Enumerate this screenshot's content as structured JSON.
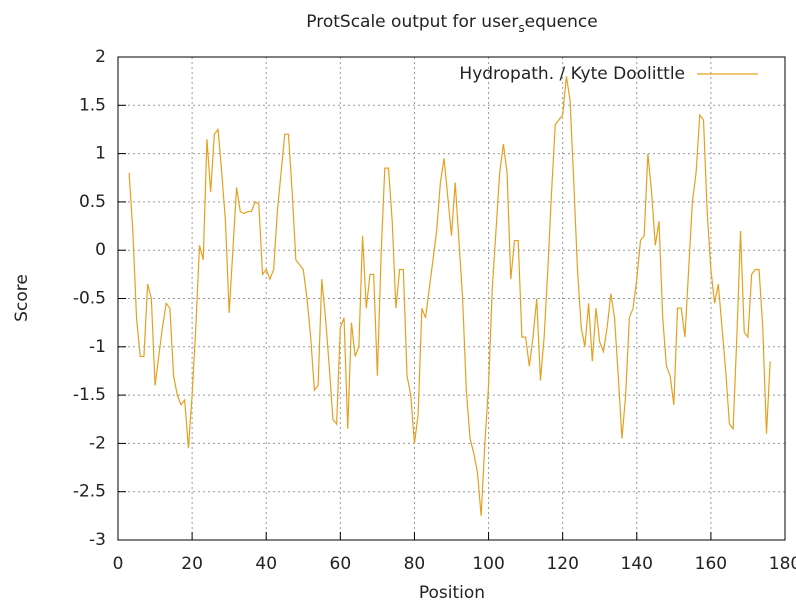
{
  "chart_data": {
    "type": "line",
    "title_parts": [
      "ProtScale output for user",
      "s",
      "equence"
    ],
    "xlabel": "Position",
    "ylabel": "Score",
    "xlim": [
      0,
      180
    ],
    "xticks": [
      0,
      20,
      40,
      60,
      80,
      100,
      120,
      140,
      160,
      180
    ],
    "ylim": [
      -3,
      2
    ],
    "yticks": [
      -3,
      -2.5,
      -2,
      -1.5,
      -1,
      -0.5,
      0,
      0.5,
      1,
      1.5,
      2
    ],
    "grid": true,
    "legend": "top-right",
    "x": [
      3,
      4,
      5,
      6,
      7,
      8,
      9,
      10,
      11,
      12,
      13,
      14,
      15,
      16,
      17,
      18,
      19,
      20,
      21,
      22,
      23,
      24,
      25,
      26,
      27,
      28,
      29,
      30,
      31,
      32,
      33,
      34,
      35,
      36,
      37,
      38,
      39,
      40,
      41,
      42,
      43,
      44,
      45,
      46,
      47,
      48,
      49,
      50,
      51,
      52,
      53,
      54,
      55,
      56,
      57,
      58,
      59,
      60,
      61,
      62,
      63,
      64,
      65,
      66,
      67,
      68,
      69,
      70,
      71,
      72,
      73,
      74,
      75,
      76,
      77,
      78,
      79,
      80,
      81,
      82,
      83,
      84,
      85,
      86,
      87,
      88,
      89,
      90,
      91,
      92,
      93,
      94,
      95,
      96,
      97,
      98,
      99,
      100,
      101,
      102,
      103,
      104,
      105,
      106,
      107,
      108,
      109,
      110,
      111,
      112,
      113,
      114,
      115,
      116,
      117,
      118,
      119,
      120,
      121,
      122,
      123,
      124,
      125,
      126,
      127,
      128,
      129,
      130,
      131,
      132,
      133,
      134,
      135,
      136,
      137,
      138,
      139,
      140,
      141,
      142,
      143,
      144,
      145,
      146,
      147,
      148,
      149,
      150,
      151,
      152,
      153,
      154,
      155,
      156,
      157,
      158,
      159,
      160,
      161,
      162,
      163,
      164,
      165,
      166,
      167,
      168,
      169,
      170,
      171,
      172,
      173,
      174,
      175,
      176
    ],
    "series": [
      {
        "name": "Hydropath. / Kyte  Doolittle",
        "color": "#e6a020",
        "values": [
          0.8,
          0.2,
          -0.7,
          -1.1,
          -1.1,
          -0.35,
          -0.5,
          -1.4,
          -1.1,
          -0.8,
          -0.55,
          -0.6,
          -1.3,
          -1.5,
          -1.6,
          -1.55,
          -2.05,
          -1.5,
          -0.8,
          0.05,
          -0.1,
          1.15,
          0.6,
          1.2,
          1.25,
          0.8,
          0.3,
          -0.65,
          0.0,
          0.65,
          0.4,
          0.38,
          0.4,
          0.4,
          0.5,
          0.48,
          -0.25,
          -0.2,
          -0.3,
          -0.2,
          0.4,
          0.8,
          1.2,
          1.2,
          0.6,
          -0.1,
          -0.15,
          -0.2,
          -0.5,
          -0.9,
          -1.45,
          -1.4,
          -0.3,
          -0.7,
          -1.2,
          -1.75,
          -1.8,
          -0.8,
          -0.7,
          -1.85,
          -0.75,
          -1.1,
          -1.0,
          0.15,
          -0.6,
          -0.25,
          -0.25,
          -1.3,
          -0.05,
          0.85,
          0.85,
          0.3,
          -0.6,
          -0.2,
          -0.2,
          -1.3,
          -1.5,
          -2.0,
          -1.7,
          -0.6,
          -0.7,
          -0.4,
          -0.1,
          0.2,
          0.7,
          0.95,
          0.55,
          0.15,
          0.7,
          0.1,
          -0.5,
          -1.45,
          -1.95,
          -2.1,
          -2.3,
          -2.75,
          -2.0,
          -1.4,
          -0.4,
          0.2,
          0.8,
          1.1,
          0.8,
          -0.3,
          0.1,
          0.1,
          -0.9,
          -0.9,
          -1.2,
          -0.9,
          -0.5,
          -1.35,
          -0.9,
          -0.2,
          0.6,
          1.3,
          1.35,
          1.4,
          1.8,
          1.55,
          0.7,
          -0.2,
          -0.8,
          -1.0,
          -0.55,
          -1.15,
          -0.6,
          -0.95,
          -1.05,
          -0.8,
          -0.45,
          -0.7,
          -1.3,
          -1.95,
          -1.5,
          -0.7,
          -0.6,
          -0.3,
          0.1,
          0.15,
          1.0,
          0.6,
          0.05,
          0.3,
          -0.7,
          -1.2,
          -1.3,
          -1.6,
          -0.6,
          -0.6,
          -0.9,
          -0.2,
          0.5,
          0.8,
          1.4,
          1.35,
          0.4,
          -0.2,
          -0.55,
          -0.35,
          -0.8,
          -1.25,
          -1.8,
          -1.85,
          -0.9,
          0.2,
          -0.85,
          -0.9,
          -0.25,
          -0.2,
          -0.2,
          -0.8,
          -1.9,
          -1.15
        ]
      }
    ]
  }
}
